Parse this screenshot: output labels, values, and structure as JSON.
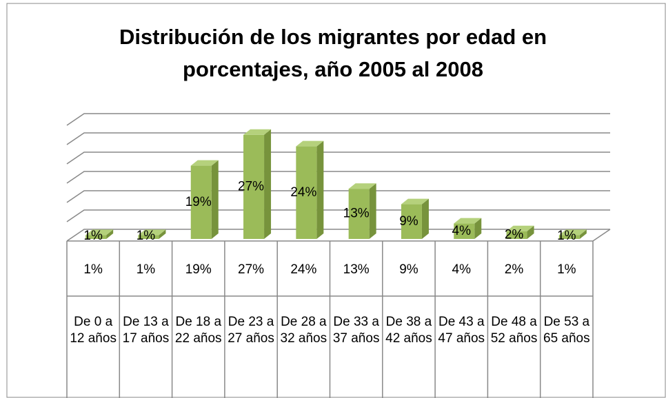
{
  "chart_data": {
    "type": "bar3d",
    "title": "Distribución de los migrantes por edad en porcentajes, año 2005 al 2008",
    "categories": [
      "De 0 a 12 años",
      "De 13 a 17 años",
      "De 18 a 22 años",
      "De 23 a 27 años",
      "De 28 a 32 años",
      "De 33 a 37 años",
      "De 38 a 42 años",
      "De 43 a 47 años",
      "De 48 a 52 años",
      "De 53 a 65 años"
    ],
    "values": [
      1,
      1,
      19,
      27,
      24,
      13,
      9,
      4,
      2,
      1
    ],
    "value_labels": [
      "1%",
      "1%",
      "19%",
      "27%",
      "24%",
      "13%",
      "9%",
      "4%",
      "2%",
      "1%"
    ],
    "color": "#9bbb59",
    "ylim": [
      0,
      30
    ],
    "yticks": [
      0,
      5,
      10,
      15,
      20,
      25,
      30
    ],
    "grid": true,
    "data_table": true
  }
}
